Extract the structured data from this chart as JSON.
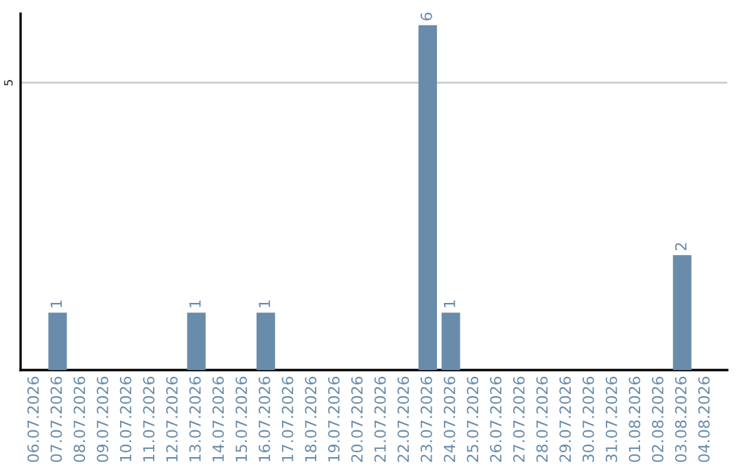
{
  "chart_data": {
    "type": "bar",
    "categories": [
      "06.07.2026",
      "07.07.2026",
      "08.07.2026",
      "09.07.2026",
      "10.07.2026",
      "11.07.2026",
      "12.07.2026",
      "13.07.2026",
      "14.07.2026",
      "15.07.2026",
      "16.07.2026",
      "17.07.2026",
      "18.07.2026",
      "19.07.2026",
      "20.07.2026",
      "21.07.2026",
      "22.07.2026",
      "23.07.2026",
      "24.07.2026",
      "25.07.2026",
      "26.07.2026",
      "27.07.2026",
      "28.07.2026",
      "29.07.2026",
      "30.07.2026",
      "31.07.2026",
      "01.08.2026",
      "02.08.2026",
      "03.08.2026",
      "04.08.2026"
    ],
    "values": [
      null,
      1,
      null,
      null,
      null,
      null,
      null,
      1,
      null,
      null,
      1,
      null,
      null,
      null,
      null,
      null,
      null,
      6,
      1,
      null,
      null,
      null,
      null,
      null,
      null,
      null,
      null,
      null,
      2,
      null
    ],
    "value_labels": [
      null,
      "1",
      null,
      null,
      null,
      null,
      null,
      "1",
      null,
      null,
      "1",
      null,
      null,
      null,
      null,
      null,
      null,
      "6",
      "1",
      null,
      null,
      null,
      null,
      null,
      null,
      null,
      null,
      null,
      "2",
      null
    ],
    "color": "#6a8cab",
    "ylim": [
      0,
      6.2
    ],
    "yticks": [
      5
    ],
    "grid": "y",
    "legend": false
  }
}
